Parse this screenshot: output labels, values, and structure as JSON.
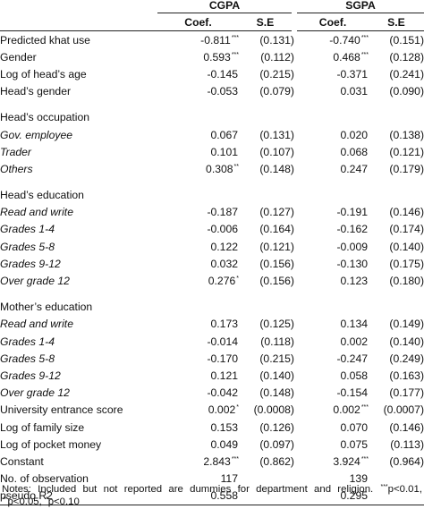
{
  "header": {
    "groups": [
      "CGPA",
      "SGPA"
    ],
    "subcols": [
      "Coef.",
      "S.E",
      "Coef.",
      "S.E"
    ]
  },
  "rows": [
    {
      "type": "data",
      "label": "Predicted khat use",
      "indent": false,
      "c1": "-0.811",
      "s1": "***",
      "se1": "(0.131)",
      "c2": "-0.740",
      "s2": "***",
      "se2": "(0.151)"
    },
    {
      "type": "data",
      "label": "Gender",
      "indent": false,
      "c1": "0.593",
      "s1": "***",
      "se1": "(0.112)",
      "c2": "0.468",
      "s2": "***",
      "se2": "(0.128)"
    },
    {
      "type": "data",
      "label": "Log of head’s age",
      "indent": false,
      "c1": "-0.145",
      "s1": "",
      "se1": "(0.215)",
      "c2": "-0.371",
      "s2": "",
      "se2": "(0.241)"
    },
    {
      "type": "data",
      "label": "Head’s gender",
      "indent": false,
      "c1": "-0.053",
      "s1": "",
      "se1": "(0.079)",
      "c2": "0.031",
      "s2": "",
      "se2": "(0.090)"
    },
    {
      "type": "spacer"
    },
    {
      "type": "data",
      "label": "Head’s occupation",
      "indent": false,
      "c1": "",
      "s1": "",
      "se1": "",
      "c2": "",
      "s2": "",
      "se2": ""
    },
    {
      "type": "data",
      "label": "Gov. employee",
      "indent": true,
      "c1": "0.067",
      "s1": "",
      "se1": "(0.131)",
      "c2": "0.020",
      "s2": "",
      "se2": "(0.138)"
    },
    {
      "type": "data",
      "label": "Trader",
      "indent": true,
      "c1": "0.101",
      "s1": "",
      "se1": "(0.107)",
      "c2": "0.068",
      "s2": "",
      "se2": "(0.121)"
    },
    {
      "type": "data",
      "label": "Others",
      "indent": true,
      "c1": "0.308",
      "s1": "**",
      "se1": "(0.148)",
      "c2": "0.247",
      "s2": "",
      "se2": "(0.179)"
    },
    {
      "type": "spacer"
    },
    {
      "type": "data",
      "label": "Head’s education",
      "indent": false,
      "c1": "",
      "s1": "",
      "se1": "",
      "c2": "",
      "s2": "",
      "se2": ""
    },
    {
      "type": "data",
      "label": "Read and write",
      "indent": true,
      "c1": "-0.187",
      "s1": "",
      "se1": "(0.127)",
      "c2": "-0.191",
      "s2": "",
      "se2": "(0.146)"
    },
    {
      "type": "data",
      "label": "Grades 1-4",
      "indent": true,
      "c1": "-0.006",
      "s1": "",
      "se1": "(0.164)",
      "c2": "-0.162",
      "s2": "",
      "se2": "(0.174)"
    },
    {
      "type": "data",
      "label": "Grades 5-8",
      "indent": true,
      "c1": "0.122",
      "s1": "",
      "se1": "(0.121)",
      "c2": "-0.009",
      "s2": "",
      "se2": "(0.140)"
    },
    {
      "type": "data",
      "label": "Grades 9-12",
      "indent": true,
      "c1": "0.032",
      "s1": "",
      "se1": "(0.156)",
      "c2": "-0.130",
      "s2": "",
      "se2": "(0.175)"
    },
    {
      "type": "data",
      "label": "Over grade 12",
      "indent": true,
      "c1": "0.276",
      "s1": "*",
      "se1": "(0.156)",
      "c2": "0.123",
      "s2": "",
      "se2": "(0.180)"
    },
    {
      "type": "spacer"
    },
    {
      "type": "data",
      "label": "Mother’s education",
      "indent": false,
      "c1": "",
      "s1": "",
      "se1": "",
      "c2": "",
      "s2": "",
      "se2": ""
    },
    {
      "type": "data",
      "label": "Read and write",
      "indent": true,
      "c1": "0.173",
      "s1": "",
      "se1": "(0.125)",
      "c2": "0.134",
      "s2": "",
      "se2": "(0.149)"
    },
    {
      "type": "data",
      "label": "Grades 1-4",
      "indent": true,
      "c1": "-0.014",
      "s1": "",
      "se1": "(0.118)",
      "c2": "0.002",
      "s2": "",
      "se2": "(0.140)"
    },
    {
      "type": "data",
      "label": "Grades 5-8",
      "indent": true,
      "c1": "-0.170",
      "s1": "",
      "se1": "(0.215)",
      "c2": "-0.247",
      "s2": "",
      "se2": "(0.249)"
    },
    {
      "type": "data",
      "label": "Grades 9-12",
      "indent": true,
      "c1": "0.121",
      "s1": "",
      "se1": "(0.140)",
      "c2": "0.058",
      "s2": "",
      "se2": "(0.163)"
    },
    {
      "type": "data",
      "label": "Over grade 12",
      "indent": true,
      "c1": "-0.042",
      "s1": "",
      "se1": "(0.148)",
      "c2": "-0.154",
      "s2": "",
      "se2": "(0.177)"
    },
    {
      "type": "data",
      "label": "University entrance score",
      "indent": false,
      "c1": "0.002",
      "s1": "*",
      "se1": "(0.0008)",
      "c2": "0.002",
      "s2": "***",
      "se2": "(0.0007)"
    },
    {
      "type": "data",
      "label": "Log of family size",
      "indent": false,
      "c1": "0.153",
      "s1": "",
      "se1": "(0.126)",
      "c2": "0.070",
      "s2": "",
      "se2": "(0.146)"
    },
    {
      "type": "data",
      "label": "Log of pocket money",
      "indent": false,
      "c1": "0.049",
      "s1": "",
      "se1": "(0.097)",
      "c2": "0.075",
      "s2": "",
      "se2": "(0.113)"
    },
    {
      "type": "data",
      "label": "Constant",
      "indent": false,
      "c1": "2.843",
      "s1": "***",
      "se1": "(0.862)",
      "c2": "3.924",
      "s2": "***",
      "se2": "(0.964)"
    },
    {
      "type": "data",
      "label": "No. of observation",
      "indent": false,
      "c1": "117",
      "s1": "",
      "se1": "",
      "c2": "139",
      "s2": "",
      "se2": ""
    },
    {
      "type": "data",
      "label": "pseudo R2",
      "indent": false,
      "c1": "0.558",
      "s1": "",
      "se1": "",
      "c2": "0.295",
      "s2": "",
      "se2": ""
    }
  ],
  "notes": {
    "prefix": "Notes: Included but not reported are dummies for department and religion.",
    "star3": "***",
    "p1": "p<0.01,",
    "star2": "**",
    "p2": "p<0.05,",
    "star1": "*",
    "p3": "p<0.10"
  }
}
